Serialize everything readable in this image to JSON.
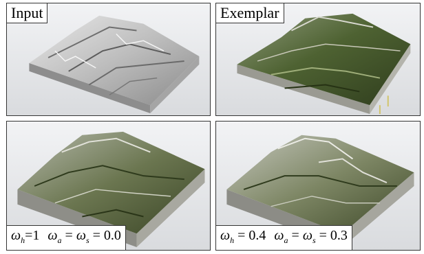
{
  "panels": {
    "top_left": {
      "label": "Input"
    },
    "top_right": {
      "label": "Exemplar"
    },
    "bottom_left": {
      "formula": {
        "h_symbol": "ω",
        "h_sub": "h",
        "h_value": "=1",
        "a_symbol": "ω",
        "a_sub": "a",
        "eq1": " = ",
        "s_symbol": "ω",
        "s_sub": "s",
        "eq2": " = ",
        "as_value": "0.0"
      }
    },
    "bottom_right": {
      "formula": {
        "h_symbol": "ω",
        "h_sub": "h",
        "h_value": " = 0.4",
        "a_symbol": "ω",
        "a_sub": "a",
        "eq1": " = ",
        "s_symbol": "ω",
        "s_sub": "s",
        "eq2": " = ",
        "as_value": "0.3"
      }
    }
  },
  "colors": {
    "panel_border": "#333333",
    "terrain_input_top": "#cfcfcf",
    "terrain_exemplar_top": "#4a5a30",
    "terrain_side": "#8f8f8f"
  }
}
